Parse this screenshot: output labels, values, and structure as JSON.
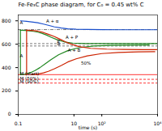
{
  "chart_data": {
    "type": "line",
    "title": "Fe-Fe₃C phase diagram, for C₀ = 0.45 wt% C",
    "xlabel": "time (s)",
    "log": "x",
    "xlim": [
      0.1,
      10000
    ],
    "ylim": [
      0,
      850
    ],
    "xticks": [
      0.1,
      10,
      {
        "value": 100,
        "label": "10²"
      },
      {
        "value": 10000,
        "label": "10⁴"
      }
    ],
    "yticks": [
      0,
      200,
      400,
      600,
      800
    ],
    "series": [
      {
        "type": "hline",
        "values": [
          725
        ],
        "color": "#555555",
        "line_style": "dashdot"
      },
      {
        "type": "hline",
        "values": [
          605
        ],
        "color": "#555555",
        "line_style": "dashed"
      },
      {
        "type": "hline",
        "values": [
          585
        ],
        "color": "#555555",
        "line_style": "dashed"
      },
      {
        "type": "hline",
        "values": [
          340
        ],
        "color": "#ff0000",
        "line_style": "solid"
      },
      {
        "type": "hline",
        "values": [
          300
        ],
        "color": "#ff0000",
        "line_style": "dashed"
      },
      {
        "type": "hline",
        "values": [
          268
        ],
        "color": "#ff0000",
        "line_style": "dashed"
      },
      {
        "type": "line",
        "x": [
          0.12,
          0.2,
          0.3,
          0.5,
          0.8,
          1.2,
          2.0,
          3.5,
          6.0,
          12,
          30,
          100,
          400,
          2000,
          10000
        ],
        "values": [
          800,
          795,
          790,
          783,
          772,
          762,
          748,
          738,
          732,
          728,
          726,
          725,
          724,
          724,
          724
        ],
        "color": "#1a4fcc",
        "line_style": "solid"
      },
      {
        "type": "line",
        "x": [
          0.12,
          0.18,
          0.25,
          0.35,
          0.5,
          0.7,
          1.0,
          1.5,
          2.5,
          4.5,
          9,
          25,
          80,
          350,
          2000,
          10000
        ],
        "values": [
          720,
          718,
          715,
          710,
          703,
          694,
          680,
          660,
          638,
          620,
          610,
          606,
          605,
          605,
          605,
          605
        ],
        "color": "#228822",
        "line_style": "solid"
      },
      {
        "type": "line",
        "x": [
          0.12,
          0.18,
          0.28,
          0.4,
          0.6,
          0.9,
          1.5,
          2.8,
          6.0,
          15,
          50,
          200,
          1000,
          5000
        ],
        "values": [
          340,
          345,
          358,
          375,
          400,
          430,
          468,
          510,
          545,
          570,
          585,
          590,
          592,
          593
        ],
        "color": "#228822",
        "line_style": "solid"
      },
      {
        "type": "line",
        "x": [
          0.12,
          0.12
        ],
        "values": [
          340,
          720
        ],
        "color": "#228822",
        "line_style": "solid"
      },
      {
        "type": "line",
        "x": [
          0.2,
          0.3,
          0.5,
          0.8,
          1.2,
          2.0,
          3.0,
          5.0,
          8.0,
          15,
          40,
          150,
          600,
          3000,
          10000
        ],
        "values": [
          720,
          718,
          712,
          700,
          685,
          665,
          645,
          620,
          600,
          580,
          565,
          558,
          555,
          554,
          554
        ],
        "color": "#cc2200",
        "line_style": "solid"
      },
      {
        "type": "line",
        "x": [
          0.3,
          0.5,
          0.8,
          1.2,
          2.0,
          3.5,
          6.0,
          12,
          30,
          100,
          400,
          2000,
          8000
        ],
        "values": [
          340,
          345,
          355,
          368,
          390,
          418,
          448,
          475,
          500,
          520,
          530,
          535,
          536
        ],
        "color": "#cc2200",
        "line_style": "solid"
      },
      {
        "type": "line",
        "x": [
          0.2,
          0.2
        ],
        "values": [
          340,
          720
        ],
        "color": "#cc2200",
        "line_style": "solid"
      }
    ],
    "annotations": [
      {
        "text": "A",
        "x": 0.115,
        "y": 780,
        "color": "black"
      },
      {
        "text": "A + α",
        "x": 1.0,
        "y": 795,
        "color": "black"
      },
      {
        "text": "A",
        "x": 0.115,
        "y": 500,
        "color": "black"
      },
      {
        "text": "A + P",
        "x": 5.0,
        "y": 660,
        "color": "black"
      },
      {
        "text": "P",
        "x": 2.5,
        "y": 622,
        "color": "black"
      },
      {
        "text": "B",
        "x": 2.5,
        "y": 600,
        "color": "black"
      },
      {
        "text": "A + B",
        "x": 6.0,
        "y": 548,
        "color": "black"
      },
      {
        "text": "50%",
        "x": 18,
        "y": 440,
        "color": "black"
      },
      {
        "text": "M (start)",
        "x": 0.115,
        "y": 350,
        "color": "black"
      },
      {
        "text": "M (50%)",
        "x": 0.115,
        "y": 308,
        "color": "black"
      },
      {
        "text": "M (90%)",
        "x": 0.115,
        "y": 276,
        "color": "black"
      }
    ]
  }
}
